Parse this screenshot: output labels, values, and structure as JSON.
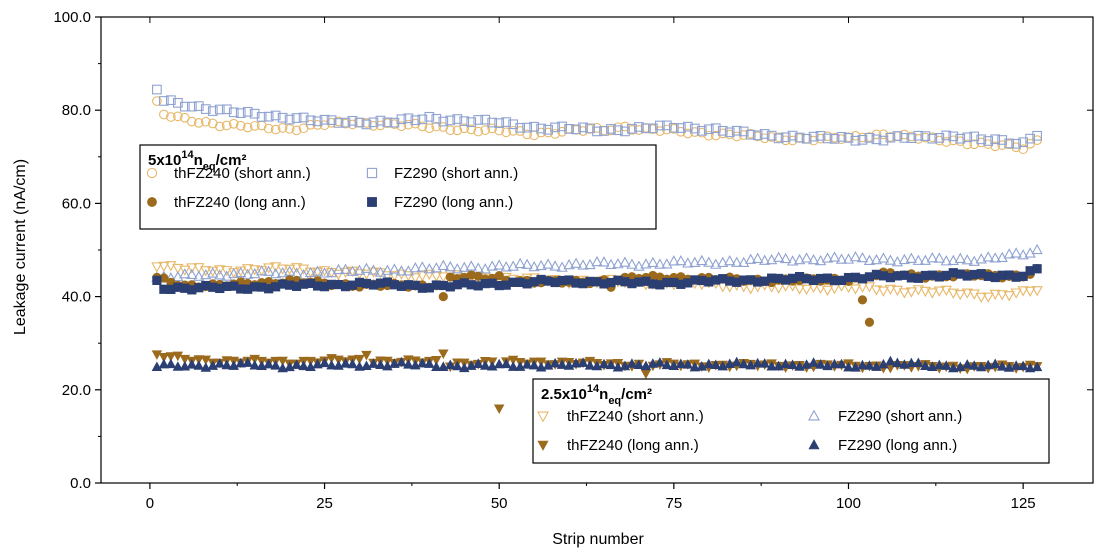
{
  "chart_data": {
    "type": "scatter",
    "xlabel": "Strip number",
    "ylabel": "Leakage current (nA/cm)",
    "xlim": [
      -7,
      135
    ],
    "ylim": [
      0,
      100
    ],
    "xticks": [
      "0",
      "25",
      "50",
      "75",
      "100",
      "125"
    ],
    "yticks": [
      "0.0",
      "20.0",
      "40.0",
      "60.0",
      "80.0",
      "100.0"
    ],
    "legend_groups": [
      {
        "title": "5x10",
        "title_sup": "14",
        "title_n": "n",
        "title_sub": "eq",
        "title_unit": "/cm²",
        "placement": "center-left",
        "entries": [
          "thFZ240 (short ann.)",
          "FZ290 (short ann.)",
          "thFZ240 (long ann.)",
          "FZ290 (long ann.)"
        ]
      },
      {
        "title": "2.5x10",
        "title_sup": "14",
        "title_n": "n",
        "title_sub": "eq",
        "title_unit": "/cm²",
        "placement": "bottom-right",
        "entries": [
          "thFZ240 (short ann.)",
          "FZ290 (short ann.)",
          "thFZ240 (long ann.)",
          "FZ290 (long ann.)"
        ]
      }
    ],
    "series": [
      {
        "name": "thFZ240 (short ann.)",
        "group": "5x10^14",
        "marker": "circle-open",
        "color": "#E8B86A",
        "profile": [
          [
            1,
            81.5
          ],
          [
            2,
            79
          ],
          [
            5,
            78
          ],
          [
            10,
            77
          ],
          [
            15,
            76.3
          ],
          [
            20,
            76
          ],
          [
            25,
            77
          ],
          [
            30,
            77.2
          ],
          [
            35,
            77
          ],
          [
            40,
            76.3
          ],
          [
            45,
            76
          ],
          [
            50,
            75.5
          ],
          [
            55,
            75
          ],
          [
            60,
            75.6
          ],
          [
            65,
            75.8
          ],
          [
            68,
            76.5
          ],
          [
            70,
            76
          ],
          [
            75,
            75.5
          ],
          [
            80,
            75
          ],
          [
            85,
            74.5
          ],
          [
            90,
            74
          ],
          [
            95,
            73.8
          ],
          [
            100,
            74
          ],
          [
            103,
            74.7
          ],
          [
            105,
            74.8
          ],
          [
            110,
            74
          ],
          [
            115,
            73.5
          ],
          [
            120,
            72.5
          ],
          [
            125,
            72
          ],
          [
            127,
            73.5
          ]
        ]
      },
      {
        "name": "FZ290 (short ann.)",
        "group": "5x10^14",
        "marker": "square-open",
        "color": "#8FA2D0",
        "profile": [
          [
            1,
            84.5
          ],
          [
            2,
            82
          ],
          [
            5,
            81.2
          ],
          [
            10,
            80
          ],
          [
            15,
            79
          ],
          [
            20,
            78.5
          ],
          [
            25,
            77.5
          ],
          [
            30,
            77.5
          ],
          [
            35,
            77.5
          ],
          [
            40,
            78.3
          ],
          [
            45,
            77.8
          ],
          [
            50,
            77.3
          ],
          [
            55,
            76.3
          ],
          [
            60,
            76
          ],
          [
            65,
            75.8
          ],
          [
            70,
            76
          ],
          [
            75,
            76.5
          ],
          [
            80,
            76
          ],
          [
            85,
            75
          ],
          [
            90,
            74.5
          ],
          [
            95,
            74
          ],
          [
            100,
            74
          ],
          [
            105,
            73.8
          ],
          [
            110,
            74.2
          ],
          [
            115,
            74.5
          ],
          [
            120,
            73.5
          ],
          [
            125,
            73
          ],
          [
            127,
            75
          ]
        ]
      },
      {
        "name": "thFZ240 (long ann.)",
        "group": "5x10^14",
        "marker": "circle-filled",
        "color": "#9B6A1C",
        "profile": [
          [
            1,
            44
          ],
          [
            5,
            42.5
          ],
          [
            10,
            42.3
          ],
          [
            15,
            43
          ],
          [
            20,
            43.3
          ],
          [
            25,
            42.8
          ],
          [
            30,
            42.5
          ],
          [
            35,
            42.3
          ],
          [
            40,
            42.3
          ],
          [
            43,
            44
          ],
          [
            45,
            44.2
          ],
          [
            50,
            43.8
          ],
          [
            55,
            43.2
          ],
          [
            60,
            43
          ],
          [
            65,
            43.5
          ],
          [
            70,
            44
          ],
          [
            75,
            44.2
          ],
          [
            80,
            43.8
          ],
          [
            85,
            43.6
          ],
          [
            90,
            43.5
          ],
          [
            95,
            43.5
          ],
          [
            100,
            43.8
          ],
          [
            103,
            44.5
          ],
          [
            105,
            44.8
          ],
          [
            110,
            44.5
          ],
          [
            115,
            44.5
          ],
          [
            120,
            44.5
          ],
          [
            125,
            44.5
          ],
          [
            127,
            45.8
          ]
        ],
        "outliers": [
          [
            42,
            40
          ],
          [
            66,
            42
          ],
          [
            102,
            39.3
          ],
          [
            103,
            34.5
          ],
          [
            50,
            44.5
          ]
        ]
      },
      {
        "name": "FZ290 (long ann.)",
        "group": "5x10^14",
        "marker": "square-filled",
        "color": "#2B3F73",
        "profile": [
          [
            1,
            43.3
          ],
          [
            2,
            42
          ],
          [
            5,
            41.8
          ],
          [
            10,
            41.9
          ],
          [
            15,
            42
          ],
          [
            20,
            42.3
          ],
          [
            25,
            42.5
          ],
          [
            30,
            42.7
          ],
          [
            35,
            42.6
          ],
          [
            40,
            42.2
          ],
          [
            45,
            42.4
          ],
          [
            50,
            42.8
          ],
          [
            55,
            43.1
          ],
          [
            60,
            43.3
          ],
          [
            65,
            43.1
          ],
          [
            70,
            42.9
          ],
          [
            75,
            43
          ],
          [
            80,
            43.3
          ],
          [
            85,
            43.5
          ],
          [
            90,
            43.7
          ],
          [
            95,
            43.8
          ],
          [
            100,
            43.9
          ],
          [
            105,
            44.3
          ],
          [
            110,
            44.4
          ],
          [
            115,
            44.6
          ],
          [
            120,
            44.6
          ],
          [
            125,
            44.5
          ],
          [
            127,
            45.7
          ]
        ]
      },
      {
        "name": "thFZ240 (short ann.)",
        "group": "2.5x10^14",
        "marker": "triangle-down-open",
        "color": "#E8B86A",
        "profile": [
          [
            1,
            47
          ],
          [
            5,
            46
          ],
          [
            10,
            45.5
          ],
          [
            15,
            46
          ],
          [
            20,
            46
          ],
          [
            25,
            45.5
          ],
          [
            30,
            45
          ],
          [
            35,
            44.8
          ],
          [
            40,
            44.5
          ],
          [
            45,
            44.3
          ],
          [
            50,
            44
          ],
          [
            55,
            43.6
          ],
          [
            60,
            43.4
          ],
          [
            65,
            43.3
          ],
          [
            70,
            43.1
          ],
          [
            75,
            43
          ],
          [
            80,
            42.7
          ],
          [
            85,
            42.3
          ],
          [
            90,
            42
          ],
          [
            95,
            41.9
          ],
          [
            100,
            42
          ],
          [
            105,
            41.5
          ],
          [
            110,
            41.3
          ],
          [
            115,
            40.8
          ],
          [
            120,
            40.3
          ],
          [
            125,
            40.8
          ],
          [
            127,
            41.5
          ]
        ]
      },
      {
        "name": "FZ290 (short ann.)",
        "group": "2.5x10^14",
        "marker": "triangle-up-open",
        "color": "#8FA2D0",
        "profile": [
          [
            1,
            44
          ],
          [
            5,
            44.3
          ],
          [
            10,
            44.8
          ],
          [
            15,
            45
          ],
          [
            20,
            45
          ],
          [
            25,
            45.3
          ],
          [
            30,
            45.5
          ],
          [
            35,
            45.7
          ],
          [
            40,
            46
          ],
          [
            45,
            46.3
          ],
          [
            50,
            46.4
          ],
          [
            55,
            46.6
          ],
          [
            60,
            46.8
          ],
          [
            65,
            47
          ],
          [
            70,
            47
          ],
          [
            75,
            47.2
          ],
          [
            80,
            47.3
          ],
          [
            85,
            47.6
          ],
          [
            90,
            47.9
          ],
          [
            95,
            48.1
          ],
          [
            100,
            48
          ],
          [
            105,
            48
          ],
          [
            110,
            47.8
          ],
          [
            115,
            47.8
          ],
          [
            120,
            48.2
          ],
          [
            125,
            49
          ],
          [
            127,
            49.7
          ]
        ]
      },
      {
        "name": "thFZ240 (long ann.)",
        "group": "2.5x10^14",
        "marker": "triangle-down-filled",
        "color": "#9B6A1C",
        "profile": [
          [
            1,
            27.5
          ],
          [
            3,
            27
          ],
          [
            5,
            26.6
          ],
          [
            10,
            26.2
          ],
          [
            15,
            26.1
          ],
          [
            20,
            26
          ],
          [
            25,
            26.3
          ],
          [
            30,
            26.3
          ],
          [
            35,
            26.2
          ],
          [
            40,
            26
          ],
          [
            45,
            25.8
          ],
          [
            50,
            25.9
          ],
          [
            55,
            26
          ],
          [
            60,
            25.8
          ],
          [
            65,
            25.6
          ],
          [
            70,
            25.5
          ],
          [
            75,
            25.4
          ],
          [
            80,
            25.3
          ],
          [
            85,
            25.3
          ],
          [
            90,
            25.3
          ],
          [
            95,
            25.2
          ],
          [
            100,
            25.2
          ],
          [
            105,
            25.1
          ],
          [
            110,
            25
          ],
          [
            115,
            25
          ],
          [
            120,
            24.9
          ],
          [
            125,
            24.9
          ],
          [
            127,
            25.4
          ]
        ],
        "outliers": [
          [
            31,
            27.5
          ],
          [
            42,
            27.8
          ],
          [
            43,
            25
          ],
          [
            71,
            23.5
          ],
          [
            50,
            16
          ]
        ]
      },
      {
        "name": "FZ290 (long ann.)",
        "group": "2.5x10^14",
        "marker": "triangle-up-filled",
        "color": "#2B3F73",
        "profile": [
          [
            1,
            25
          ],
          [
            5,
            25.2
          ],
          [
            10,
            25.3
          ],
          [
            15,
            25.3
          ],
          [
            20,
            25.1
          ],
          [
            25,
            25.2
          ],
          [
            30,
            25.4
          ],
          [
            35,
            25.4
          ],
          [
            40,
            25.3
          ],
          [
            45,
            25.1
          ],
          [
            50,
            25.1
          ],
          [
            55,
            25.3
          ],
          [
            60,
            25.3
          ],
          [
            65,
            25.3
          ],
          [
            70,
            25.3
          ],
          [
            75,
            25.3
          ],
          [
            80,
            25.3
          ],
          [
            85,
            25.4
          ],
          [
            90,
            25.4
          ],
          [
            95,
            25.3
          ],
          [
            100,
            25.1
          ],
          [
            103,
            25.2
          ],
          [
            106,
            25.7
          ],
          [
            110,
            25.3
          ],
          [
            115,
            25.1
          ],
          [
            120,
            25
          ],
          [
            125,
            25
          ],
          [
            127,
            25.2
          ]
        ]
      }
    ]
  }
}
